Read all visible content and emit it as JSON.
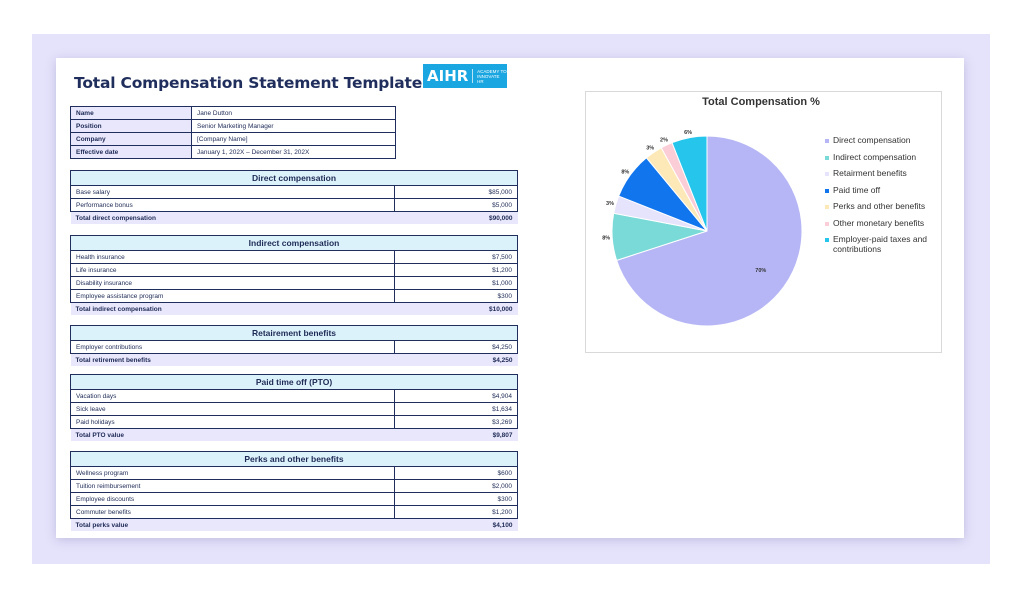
{
  "document": {
    "title": "Total Compensation Statement Template",
    "logo": {
      "word": "AIHR",
      "tagline": "Academy to Innovate HR"
    }
  },
  "info": [
    {
      "label": "Name",
      "value": "Jane Dutton"
    },
    {
      "label": "Position",
      "value": "Senior Marketing Manager"
    },
    {
      "label": "Company",
      "value": "[Company Name]"
    },
    {
      "label": "Effective date",
      "value": "January 1, 202X – December 31, 202X"
    }
  ],
  "sections": {
    "direct": {
      "title": "Direct compensation",
      "rows": [
        {
          "label": "Base salary",
          "value": "$85,000"
        },
        {
          "label": "Performance bonus",
          "value": "$5,000"
        }
      ],
      "total": {
        "label": "Total direct compensation",
        "value": "$90,000"
      }
    },
    "indirect": {
      "title": "Indirect compensation",
      "rows": [
        {
          "label": "Health insurance",
          "value": "$7,500"
        },
        {
          "label": "Life insurance",
          "value": "$1,200"
        },
        {
          "label": "Disability insurance",
          "value": "$1,000"
        },
        {
          "label": "Employee assistance program",
          "value": "$300"
        }
      ],
      "total": {
        "label": "Total indirect compensation",
        "value": "$10,000"
      }
    },
    "retirement": {
      "title": "Retairement benefits",
      "rows": [
        {
          "label": "Employer contributions",
          "value": "$4,250"
        }
      ],
      "total": {
        "label": "Total retirement benefits",
        "value": "$4,250"
      }
    },
    "pto": {
      "title": "Paid time off (PTO)",
      "rows": [
        {
          "label": "Vacation days",
          "value": "$4,904"
        },
        {
          "label": "Sick leave",
          "value": "$1,634"
        },
        {
          "label": "Paid holidays",
          "value": "$3,269"
        }
      ],
      "total": {
        "label": "Total PTO value",
        "value": "$9,807"
      }
    },
    "perks": {
      "title": "Perks and other benefits",
      "rows": [
        {
          "label": "Wellness program",
          "value": "$600"
        },
        {
          "label": "Tuition reimbursement",
          "value": "$2,000"
        },
        {
          "label": "Employee discounts",
          "value": "$300"
        },
        {
          "label": "Commuter benefits",
          "value": "$1,200"
        }
      ],
      "total": {
        "label": "Total perks value",
        "value": "$4,100"
      }
    }
  },
  "chart_data": {
    "type": "pie",
    "title": "Total Compensation %",
    "legend_position": "right",
    "slices": [
      {
        "name": "Direct compensation",
        "value": 70,
        "label": "70%",
        "color": "#b6b6f6"
      },
      {
        "name": "Indirect compensation",
        "value": 8,
        "label": "8%",
        "color": "#79dad8"
      },
      {
        "name": "Retairment benefits",
        "value": 3,
        "label": "3%",
        "color": "#e6e3fc"
      },
      {
        "name": "Paid time off",
        "value": 8,
        "label": "8%",
        "color": "#1175ee"
      },
      {
        "name": "Perks and other benefits",
        "value": 3,
        "label": "3%",
        "color": "#fde9b8"
      },
      {
        "name": "Other monetary benefits",
        "value": 2,
        "label": "2%",
        "color": "#fbcdd6"
      },
      {
        "name": "Employer-paid taxes and contributions",
        "value": 6,
        "label": "6%",
        "color": "#26c5ec"
      }
    ]
  }
}
